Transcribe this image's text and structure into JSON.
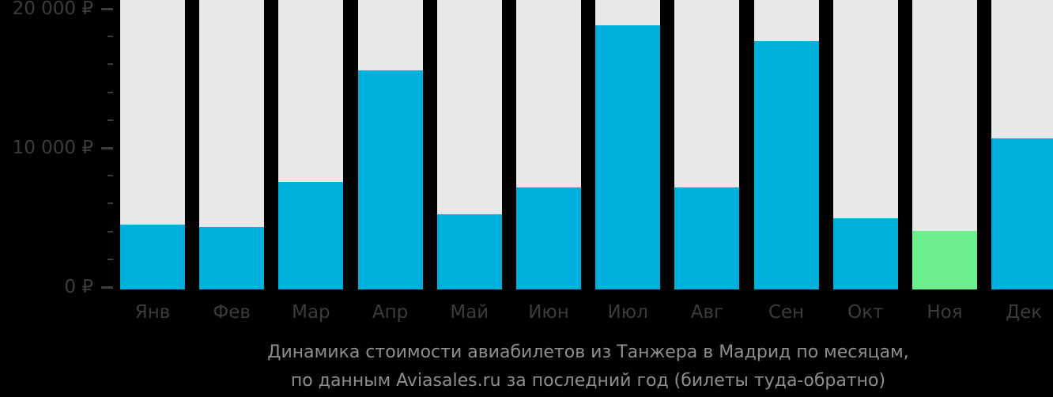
{
  "colors": {
    "background": "#000000",
    "bar": "#00B0DC",
    "highlight_bar": "#6CEE8C",
    "column_background": "#E8E8E8",
    "axis_text": "#3C3C3C",
    "tick": "#3C3C3C",
    "title_text": "#8E8E8E"
  },
  "title": {
    "line1": "Динамика стоимости авиабилетов из Танжера в Мадрид по месяцам,",
    "line2": "по данным Aviasales.ru за последний год (билеты туда-обратно)"
  },
  "chart_data": {
    "type": "bar",
    "title": "Динамика стоимости авиабилетов из Танжера в Мадрид по месяцам, по данным Aviasales.ru за последний год (билеты туда-обратно)",
    "categories": [
      "Янв",
      "Фев",
      "Мар",
      "Апр",
      "Май",
      "Июн",
      "Июл",
      "Авг",
      "Сен",
      "Окт",
      "Ноя",
      "Дек"
    ],
    "values": [
      4600,
      4450,
      7650,
      15600,
      5350,
      7250,
      18800,
      7250,
      17700,
      5050,
      4150,
      10750
    ],
    "highlight_index": 10,
    "currency": "₽",
    "ylim": [
      0,
      20000
    ],
    "y_axis_major_ticks": [
      {
        "value": 20000,
        "label": "20 000 ₽"
      },
      {
        "value": 10000,
        "label": "10 000 ₽"
      },
      {
        "value": 0,
        "label": "0 ₽"
      }
    ],
    "y_axis_minor_step": 2000,
    "xlabel": "",
    "ylabel": "₽",
    "legend": "none",
    "grid": false
  }
}
